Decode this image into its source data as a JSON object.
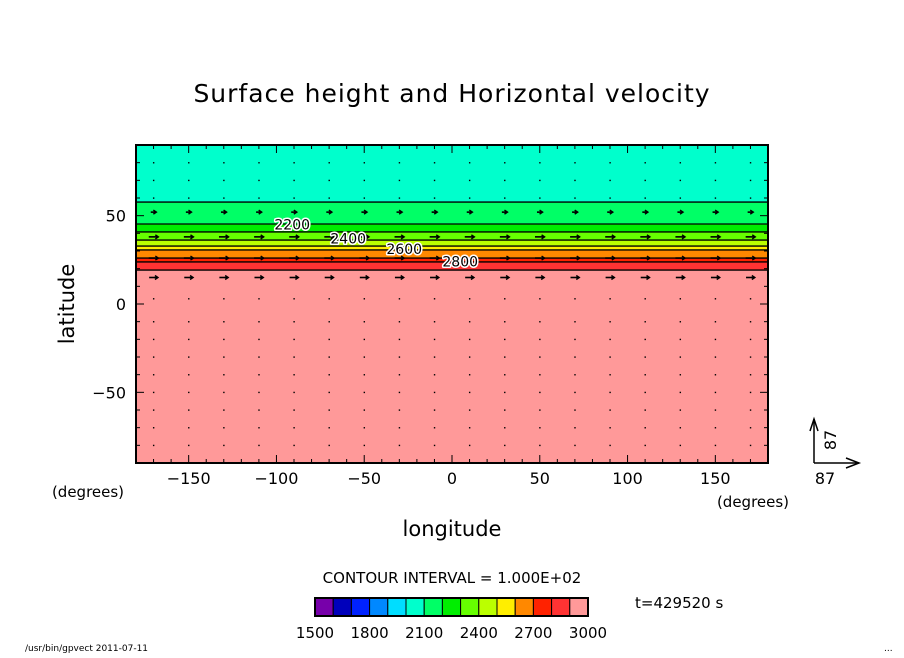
{
  "chart_data": {
    "type": "heatmap",
    "subtype": "contour-fill-with-vectors",
    "title": "Surface height and Horizontal velocity",
    "xlabel": "longitude",
    "ylabel": "latitude",
    "x_units": "(degrees)",
    "y_units": "(degrees)",
    "xlim": [
      -180,
      180
    ],
    "ylim": [
      -90,
      90
    ],
    "x_ticks": [
      -150,
      -100,
      -50,
      0,
      50,
      100,
      150
    ],
    "y_ticks": [
      50,
      0,
      -50
    ],
    "x_tick_labels": [
      "−150",
      "−100",
      "−50",
      "0",
      "50",
      "100",
      "150"
    ],
    "y_tick_labels": [
      "50",
      "0",
      "−50"
    ],
    "bands": [
      {
        "lat_min": 57.7,
        "lat_max": 90,
        "color": "#00ffcc",
        "level": "2000-2100"
      },
      {
        "lat_min": 45.3,
        "lat_max": 57.7,
        "color": "#00ff66",
        "level": "2100-2200"
      },
      {
        "lat_min": 40.8,
        "lat_max": 45.3,
        "color": "#00ee00",
        "level": "2200-2300"
      },
      {
        "lat_min": 36.2,
        "lat_max": 40.8,
        "color": "#66ff00",
        "level": "2300-2400"
      },
      {
        "lat_min": 32.8,
        "lat_max": 36.2,
        "color": "#bbff00",
        "level": "2400-2500"
      },
      {
        "lat_min": 30.6,
        "lat_max": 32.8,
        "color": "#ffee00",
        "level": "2500-2600"
      },
      {
        "lat_min": 26.0,
        "lat_max": 30.6,
        "color": "#ff8800",
        "level": "2600-2700"
      },
      {
        "lat_min": 23.8,
        "lat_max": 26.0,
        "color": "#ff2200",
        "level": "2700-2800"
      },
      {
        "lat_min": 19.2,
        "lat_max": 23.8,
        "color": "#ff3333",
        "level": "2800-2900"
      },
      {
        "lat_min": -90,
        "lat_max": 19.2,
        "color": "#ff9999",
        "level": "2900-3000"
      }
    ],
    "contour_labels": [
      {
        "text": "2200",
        "lon": -50,
        "lat": 45
      },
      {
        "text": "2400",
        "lon": -50,
        "lat": 37
      },
      {
        "text": "2600",
        "lon": -50,
        "lat": 31
      },
      {
        "text": "2800",
        "lon": -50,
        "lat": 24
      }
    ],
    "vector_rows": [
      {
        "lat": 80,
        "strength": 0.05
      },
      {
        "lat": 70,
        "strength": 0.05
      },
      {
        "lat": 60,
        "strength": 0.05
      },
      {
        "lat": 52,
        "strength": 0.35
      },
      {
        "lat": 38,
        "strength": 0.6
      },
      {
        "lat": 26,
        "strength": 0.6
      },
      {
        "lat": 15,
        "strength": 0.55
      },
      {
        "lat": 3,
        "strength": 0.05
      },
      {
        "lat": -10,
        "strength": 0.02
      },
      {
        "lat": -20,
        "strength": 0.02
      },
      {
        "lat": -30,
        "strength": 0.02
      },
      {
        "lat": -40,
        "strength": 0.02
      },
      {
        "lat": -50,
        "strength": 0.02
      },
      {
        "lat": -60,
        "strength": 0.02
      },
      {
        "lat": -70,
        "strength": 0.02
      },
      {
        "lat": -80,
        "strength": 0.02
      }
    ],
    "vector_lons": [
      -170,
      -150,
      -130,
      -110,
      -90,
      -70,
      -50,
      -30,
      -10,
      10,
      30,
      50,
      70,
      90,
      110,
      130,
      150,
      170
    ],
    "reference_vector": {
      "u_label": "87",
      "v_label": "87"
    },
    "contour_interval_label": "CONTOUR INTERVAL = 1.000E+02",
    "colorbar": {
      "colors": [
        "#7700aa",
        "#0000bb",
        "#0022ff",
        "#0088ff",
        "#00ddff",
        "#00ffcc",
        "#00ff66",
        "#00ee00",
        "#66ff00",
        "#bbff00",
        "#ffee00",
        "#ff8800",
        "#ff2200",
        "#ff3333",
        "#ff9999"
      ],
      "tick_labels": [
        "1500",
        "1800",
        "2100",
        "2400",
        "2700",
        "3000"
      ]
    },
    "time_label": "t=429520 s"
  },
  "footer": {
    "program": "/usr/bin/gpvect  2011-07-11",
    "ellipsis": "..."
  }
}
